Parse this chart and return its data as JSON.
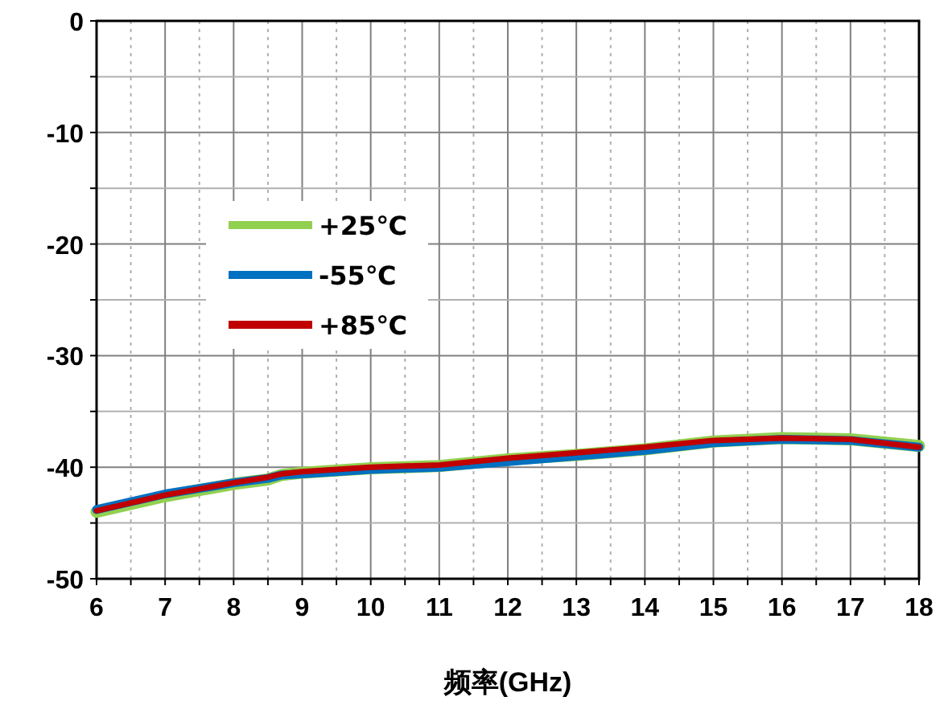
{
  "chart_data": {
    "type": "line",
    "xlabel": "频率(GHz)",
    "xlim": [
      6,
      18
    ],
    "xticks": [
      6,
      {
        "value": 6.5,
        "label": null
      },
      7,
      {
        "value": 7.5,
        "label": null
      },
      8,
      {
        "value": 8.5,
        "label": null
      },
      9,
      {
        "value": 9.5,
        "label": null
      },
      10,
      {
        "value": 10.5,
        "label": null
      },
      11,
      {
        "value": 11.5,
        "label": null
      },
      12,
      {
        "value": 12.5,
        "label": null
      },
      13,
      {
        "value": 13.5,
        "label": null
      },
      14,
      {
        "value": 14.5,
        "label": null
      },
      15,
      {
        "value": 15.5,
        "label": null
      },
      16,
      {
        "value": 16.5,
        "label": null
      },
      17,
      {
        "value": 17.5,
        "label": null
      },
      18
    ],
    "ylim": [
      -50,
      0
    ],
    "yticks": [
      -50,
      {
        "value": -45,
        "label": null
      },
      -40,
      {
        "value": -35,
        "label": null
      },
      -30,
      {
        "value": -25,
        "label": null
      },
      -20,
      {
        "value": -15,
        "label": null
      },
      -10,
      {
        "value": -5,
        "label": null
      },
      0
    ],
    "grid": true,
    "legend": "left",
    "marker": "none",
    "line_style": "solid",
    "x": [
      6,
      7,
      8,
      8.5,
      8.7,
      9,
      10,
      11,
      12,
      13,
      14,
      15,
      16,
      17,
      18
    ],
    "series": [
      {
        "name": "+25℃",
        "color": "#92d050",
        "values": [
          -44.0,
          -42.6,
          -41.5,
          -41.1,
          -40.7,
          -40.5,
          -40.1,
          -39.9,
          -39.3,
          -38.9,
          -38.4,
          -37.7,
          -37.4,
          -37.5,
          -38.1
        ]
      },
      {
        "name": "-55℃",
        "color": "#0070c0",
        "values": [
          -43.8,
          -42.4,
          -41.4,
          -41.0,
          -40.7,
          -40.6,
          -40.2,
          -40.0,
          -39.5,
          -39.0,
          -38.5,
          -37.8,
          -37.5,
          -37.6,
          -38.2
        ]
      },
      {
        "name": "+85℃",
        "color": "#c00000",
        "values": [
          -43.9,
          -42.5,
          -41.4,
          -40.9,
          -40.6,
          -40.4,
          -40.0,
          -39.8,
          -39.2,
          -38.7,
          -38.2,
          -37.6,
          -37.4,
          -37.5,
          -38.2
        ]
      }
    ]
  }
}
